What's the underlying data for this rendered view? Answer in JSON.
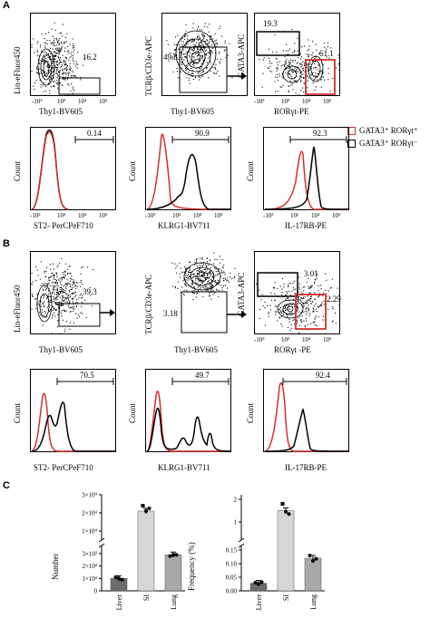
{
  "panel_labels": {
    "a": "A",
    "b": "B",
    "c": "C"
  },
  "colors": {
    "red": "#d32f2f",
    "black": "#000000",
    "bar_liver": "#6b6b6b",
    "bar_si": "#d7d7d7",
    "bar_lung": "#a8a8a8"
  },
  "legend": {
    "red": "GATA3⁺ RORγt⁺",
    "black": "GATA3⁺ RORγt⁻"
  },
  "panelA": {
    "row1": [
      {
        "ylabel": "Lin-eFluor450",
        "xlabel": "Thy1-BV605",
        "gates": [
          "16.2"
        ],
        "xticks": [
          "-10³",
          "10³",
          "10⁴",
          "10⁵"
        ]
      },
      {
        "ylabel": "TCRβ/CD3e-APC",
        "xlabel": "Thy1-BV605",
        "gates": [
          "49.8"
        ]
      },
      {
        "ylabel": "GATA3-APC",
        "xlabel": "RORγt-PE",
        "gates": [
          "19.3",
          "61.1"
        ],
        "xticks": [
          "-10³",
          "10³",
          "10⁴",
          "10⁵"
        ]
      }
    ],
    "row2": [
      {
        "ylabel": "Count",
        "xlabel": "ST2- PerCPeF710",
        "gate": "0.14",
        "xticks": [
          "-10³",
          "10³",
          "10⁴",
          "10⁵"
        ]
      },
      {
        "ylabel": "Count",
        "xlabel": "KLRG1-BV711",
        "gate": "90.9",
        "xticks": [
          "-10³",
          "10³",
          "10⁴",
          "10⁵"
        ]
      },
      {
        "ylabel": "Count",
        "xlabel": "IL-17RB-PE",
        "gate": "92.3",
        "xticks": [
          "-10³",
          "10³",
          "10⁴",
          "10⁵"
        ]
      }
    ]
  },
  "panelB": {
    "row1": [
      {
        "ylabel": "Lin-eFluor450",
        "xlabel": "Thy1-BV605",
        "gates": [
          "39.3"
        ]
      },
      {
        "ylabel": "TCRβ/CD3e-APC",
        "xlabel": "Thy1-BV605",
        "gates": [
          "3.18"
        ]
      },
      {
        "ylabel": "GATA3-APC",
        "xlabel": "RORγt -PE",
        "gates": [
          "3.01",
          "2.29"
        ],
        "xticks": [
          "-10³",
          "10³",
          "10⁴",
          "10⁵"
        ]
      }
    ],
    "row2": [
      {
        "ylabel": "Count",
        "xlabel": "ST2- PerCPeF710",
        "gate": "70.5"
      },
      {
        "ylabel": "Count",
        "xlabel": "KLRG1-BV711",
        "gate": "49.7"
      },
      {
        "ylabel": "Count",
        "xlabel": "IL-17RB-PE",
        "gate": "92.4"
      }
    ]
  },
  "chart_data": [
    {
      "type": "bar",
      "categories": [
        "Liver",
        "SI",
        "Lung"
      ],
      "ylabel": "Number",
      "values": [
        1000,
        21000,
        2900
      ],
      "points": [
        [
          1100,
          1000,
          900
        ],
        [
          24000,
          21000,
          22500
        ],
        [
          2800,
          2900,
          2900
        ]
      ],
      "axis_break": true,
      "yticks_low": [
        "0",
        "1×10³",
        "2×10³",
        "3×10³"
      ],
      "yticks_high": [
        "1×10⁴",
        "2×10⁴",
        "3×10⁴"
      ]
    },
    {
      "type": "bar",
      "categories": [
        "Liver",
        "SI",
        "Lung"
      ],
      "ylabel": "Frequency (%)",
      "values": [
        0.028,
        1.5,
        0.12
      ],
      "points": [
        [
          0.03,
          0.025,
          0.032
        ],
        [
          1.8,
          1.45,
          1.35
        ],
        [
          0.13,
          0.11,
          0.118
        ]
      ],
      "axis_break": true,
      "yticks_low": [
        "0.00",
        "0.05",
        "0.10",
        "0.15"
      ],
      "yticks_high": [
        "1",
        "2"
      ]
    }
  ]
}
